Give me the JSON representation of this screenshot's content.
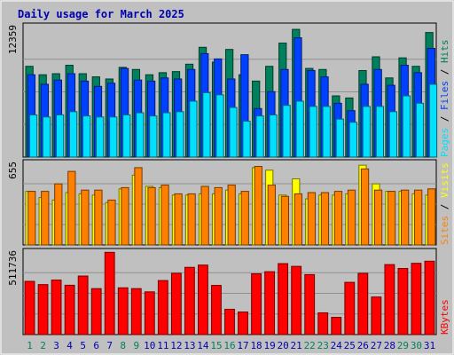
{
  "title": "Daily usage for March 2025",
  "colors": {
    "background": "#c0c0c0",
    "plot": "#c0c0c0",
    "title": "#0000b0",
    "hits": "#00805c",
    "files": "#0040ff",
    "pages": "#00e0ff",
    "visits": "#ffff00",
    "sites": "#ff8000",
    "kbytes": "#ff0000",
    "weekend_label": "#00805c",
    "weekday_label": "#0000b0"
  },
  "chart_data": [
    {
      "type": "bar",
      "panel": "hits-files-pages",
      "x": [
        1,
        2,
        3,
        4,
        5,
        6,
        7,
        8,
        9,
        10,
        11,
        12,
        13,
        14,
        15,
        16,
        17,
        18,
        19,
        20,
        21,
        22,
        23,
        24,
        25,
        26,
        27,
        28,
        29,
        30,
        31
      ],
      "y_tick_label": "12359",
      "ylim": [
        0,
        12359
      ],
      "series": [
        {
          "name": "Hits",
          "values": [
            8600,
            7800,
            7900,
            8700,
            7900,
            7600,
            7400,
            8500,
            8300,
            7800,
            8000,
            8100,
            8800,
            10400,
            9000,
            10200,
            7800,
            7200,
            8600,
            10800,
            12100,
            8400,
            8300,
            5800,
            5600,
            8200,
            9500,
            7500,
            9400,
            8600,
            11800
          ]
        },
        {
          "name": "Files",
          "values": [
            7800,
            6900,
            7300,
            7900,
            7200,
            6700,
            7000,
            8400,
            7300,
            7200,
            7500,
            7400,
            8300,
            9800,
            9300,
            7400,
            9700,
            4600,
            6200,
            8300,
            11300,
            8200,
            7600,
            5100,
            4400,
            6900,
            8300,
            6800,
            8700,
            8000,
            10300
          ]
        },
        {
          "name": "Pages",
          "values": [
            4000,
            3800,
            4000,
            4300,
            3900,
            3800,
            3800,
            4000,
            4200,
            3900,
            4200,
            4300,
            5300,
            6100,
            5900,
            4700,
            3400,
            3900,
            4000,
            4900,
            5300,
            4800,
            4800,
            3600,
            3300,
            4800,
            4800,
            4300,
            5800,
            5100,
            6900
          ]
        }
      ]
    },
    {
      "type": "bar",
      "panel": "visits-sites",
      "x": [
        1,
        2,
        3,
        4,
        5,
        6,
        7,
        8,
        9,
        10,
        11,
        12,
        13,
        14,
        15,
        16,
        17,
        18,
        19,
        20,
        21,
        22,
        23,
        24,
        25,
        26,
        27,
        28,
        29,
        30,
        31
      ],
      "y_tick_label": "655",
      "ylim": [
        0,
        655
      ],
      "series": [
        {
          "name": "Visits",
          "values": [
            430,
            380,
            360,
            420,
            410,
            400,
            340,
            450,
            560,
            470,
            460,
            400,
            400,
            410,
            410,
            440,
            410,
            620,
            600,
            400,
            530,
            370,
            400,
            400,
            410,
            640,
            490,
            430,
            430,
            410,
            400
          ]
        },
        {
          "name": "Sites",
          "values": [
            430,
            430,
            490,
            590,
            440,
            440,
            360,
            460,
            620,
            460,
            480,
            410,
            410,
            470,
            460,
            480,
            430,
            630,
            480,
            390,
            410,
            420,
            420,
            430,
            440,
            610,
            440,
            430,
            440,
            440,
            450
          ]
        }
      ]
    },
    {
      "type": "bar",
      "panel": "kbytes",
      "x": [
        1,
        2,
        3,
        4,
        5,
        6,
        7,
        8,
        9,
        10,
        11,
        12,
        13,
        14,
        15,
        16,
        17,
        18,
        19,
        20,
        21,
        22,
        23,
        24,
        25,
        26,
        27,
        28,
        29,
        30,
        31
      ],
      "y_tick_label": "511736",
      "ylim": [
        0,
        511736
      ],
      "series": [
        {
          "name": "KBytes",
          "values": [
            330000,
            310000,
            338000,
            306000,
            363000,
            285000,
            510000,
            290000,
            285000,
            265000,
            335000,
            380000,
            417000,
            431000,
            305000,
            157000,
            140000,
            377000,
            390000,
            440000,
            423000,
            372000,
            135000,
            107000,
            324000,
            380000,
            233000,
            434000,
            410000,
            442000,
            455000
          ]
        }
      ]
    }
  ],
  "legends": {
    "top": [
      "Pages",
      "Files",
      "Hits"
    ],
    "middle": [
      "Sites",
      "Visits"
    ],
    "bottom": [
      "KBytes"
    ],
    "separator": " / "
  },
  "x_labels": {
    "days": [
      "1",
      "2",
      "3",
      "4",
      "5",
      "6",
      "7",
      "8",
      "9",
      "10",
      "11",
      "12",
      "13",
      "14",
      "15",
      "16",
      "17",
      "18",
      "19",
      "20",
      "21",
      "22",
      "23",
      "24",
      "25",
      "26",
      "27",
      "28",
      "29",
      "30",
      "31"
    ],
    "weekend_days": [
      1,
      2,
      8,
      9,
      15,
      16,
      22,
      23,
      29,
      30
    ]
  }
}
